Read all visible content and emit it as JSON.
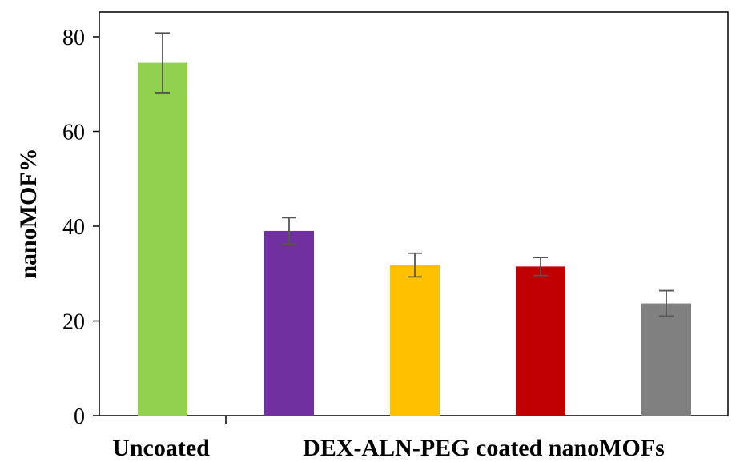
{
  "chart_data": {
    "type": "bar",
    "ylabel": "nanoMOF%",
    "ylim": [
      0,
      80
    ],
    "yticks": [
      0,
      20,
      40,
      60,
      80
    ],
    "grid": false,
    "legend": "none",
    "category_labels_line": "Uncoated   DEX-ALN-PEG coated nanoMOFs",
    "category_labels": [
      "Uncoated",
      "DEX-ALN-PEG coated nanoMOFs"
    ],
    "bars": [
      {
        "value": 74.5,
        "error": 6.3,
        "color": "#92d050"
      },
      {
        "value": 39.0,
        "error": 2.8,
        "color": "#7030a0"
      },
      {
        "value": 31.8,
        "error": 2.5,
        "color": "#ffc000"
      },
      {
        "value": 31.5,
        "error": 1.9,
        "color": "#c00000"
      },
      {
        "value": 23.7,
        "error": 2.7,
        "color": "#808080"
      }
    ]
  }
}
